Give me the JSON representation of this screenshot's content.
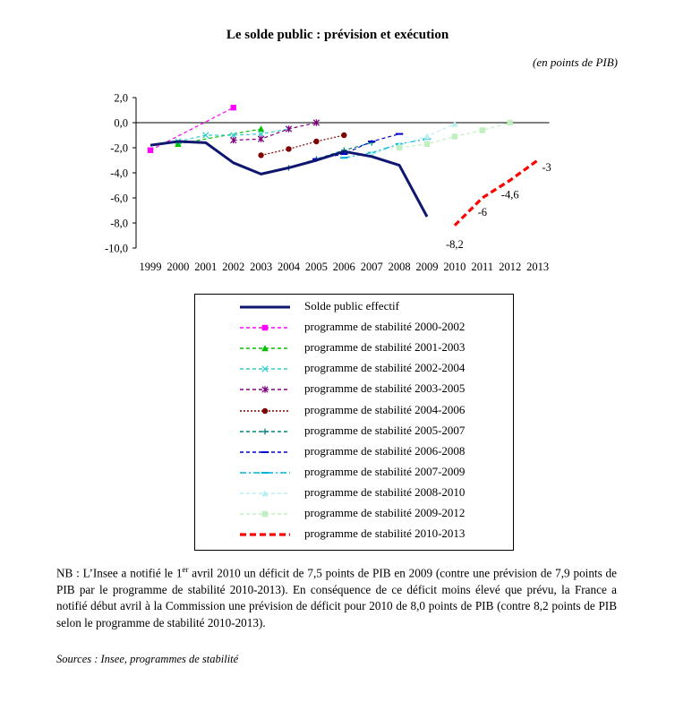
{
  "chart_data": {
    "type": "line",
    "title": "Le solde public : prévision et exécution",
    "unit": "(en points de PIB)",
    "ylim": [
      -10,
      2
    ],
    "yticks": [
      "2,0",
      "0,0",
      "-2,0",
      "-4,0",
      "-6,0",
      "-8,0",
      "-10,0"
    ],
    "x_categories": [
      "1999",
      "2000",
      "2001",
      "2002",
      "2003",
      "2004",
      "2005",
      "2006",
      "2007",
      "2008",
      "2009",
      "2010",
      "2011",
      "2012",
      "2013"
    ],
    "grid": false,
    "legend_position": "bottom",
    "series": [
      {
        "name": "Solde public effectif",
        "color": "#0e1670",
        "style": "solid-thick",
        "marker": "none",
        "x": [
          "1999",
          "2000",
          "2001",
          "2002",
          "2003",
          "2004",
          "2005",
          "2006",
          "2007",
          "2008",
          "2009"
        ],
        "y": [
          -1.8,
          -1.5,
          -1.6,
          -3.2,
          -4.1,
          -3.6,
          -3.0,
          -2.3,
          -2.7,
          -3.4,
          -7.5
        ]
      },
      {
        "name": "programme de stabilité 2000-2002",
        "color": "#ff00ff",
        "style": "dashed",
        "marker": "square",
        "x": [
          "1999",
          "2002"
        ],
        "y": [
          -2.2,
          1.2
        ]
      },
      {
        "name": "programme de stabilité 2001-2003",
        "color": "#00c000",
        "style": "dashed",
        "marker": "triangle",
        "x": [
          "2000",
          "2003"
        ],
        "y": [
          -1.7,
          -0.5
        ]
      },
      {
        "name": "programme de stabilité 2002-2004",
        "color": "#33cccc",
        "style": "dashed",
        "marker": "x",
        "x": [
          "2000",
          "2001",
          "2002",
          "2003",
          "2004"
        ],
        "y": [
          -1.5,
          -1.0,
          -1.0,
          -0.9,
          -0.5
        ]
      },
      {
        "name": "programme de stabilité 2003-2005",
        "color": "#800080",
        "style": "dashed",
        "marker": "star",
        "x": [
          "2002",
          "2003",
          "2004",
          "2005"
        ],
        "y": [
          -1.4,
          -1.3,
          -0.5,
          0.0
        ]
      },
      {
        "name": "programme de stabilité 2004-2006",
        "color": "#800000",
        "style": "dotted",
        "marker": "circle",
        "x": [
          "2003",
          "2004",
          "2005",
          "2006"
        ],
        "y": [
          -2.6,
          -2.1,
          -1.5,
          -1.0
        ]
      },
      {
        "name": "programme de stabilité 2005-2007",
        "color": "#008080",
        "style": "dashed",
        "marker": "plus",
        "x": [
          "2004",
          "2005",
          "2006",
          "2007"
        ],
        "y": [
          -3.6,
          -2.9,
          -2.2,
          -1.6
        ]
      },
      {
        "name": "programme de stabilité 2006-2008",
        "color": "#0000cc",
        "style": "dashed",
        "marker": "dash",
        "x": [
          "2005",
          "2006",
          "2007",
          "2008"
        ],
        "y": [
          -2.9,
          -2.5,
          -1.5,
          -0.9
        ]
      },
      {
        "name": "programme de stabilité 2007-2009",
        "color": "#00b0d8",
        "style": "dashdot",
        "marker": "dash",
        "x": [
          "2006",
          "2007",
          "2008",
          "2009"
        ],
        "y": [
          -2.8,
          -2.4,
          -1.7,
          -1.3
        ]
      },
      {
        "name": "programme de stabilité 2008-2010",
        "color": "#b8f0f0",
        "style": "dashed",
        "marker": "triangle",
        "x": [
          "2007",
          "2008",
          "2009",
          "2010"
        ],
        "y": [
          -2.5,
          -1.8,
          -1.1,
          -0.1
        ]
      },
      {
        "name": "programme de stabilité 2009-2012",
        "color": "#c0f0c0",
        "style": "dashed",
        "marker": "square",
        "x": [
          "2008",
          "2009",
          "2010",
          "2011",
          "2012"
        ],
        "y": [
          -2.0,
          -1.7,
          -1.1,
          -0.6,
          0.0
        ]
      },
      {
        "name": "programme de stabilité 2010-2013",
        "color": "#ff0000",
        "style": "dashed-thick",
        "marker": "none",
        "x": [
          "2010",
          "2011",
          "2012",
          "2013"
        ],
        "y": [
          -8.2,
          -6,
          -4.6,
          -3
        ]
      }
    ],
    "data_labels": [
      {
        "series": "programme de stabilité 2010-2013",
        "x": "2010",
        "text": "-8,2"
      },
      {
        "series": "programme de stabilité 2010-2013",
        "x": "2011",
        "text": "-6"
      },
      {
        "series": "programme de stabilité 2010-2013",
        "x": "2012",
        "text": "-4,6"
      },
      {
        "series": "programme de stabilité 2010-2013",
        "x": "2013",
        "text": "-3"
      }
    ]
  },
  "note": {
    "prefix": "NB : L’Insee a notifié le 1",
    "sup": "er",
    "rest": " avril 2010 un déficit de 7,5 points de PIB en 2009 (contre une prévision de 7,9 points de PIB par le programme de stabilité 2010-2013). En conséquence de ce déficit moins élevé que prévu, la France a notifié début avril à la Commission une prévision de déficit pour 2010 de 8,0 points de PIB (contre 8,2 points de PIB selon le programme de stabilité 2010-2013)."
  },
  "sources": "Sources : Insee, programmes de stabilité"
}
